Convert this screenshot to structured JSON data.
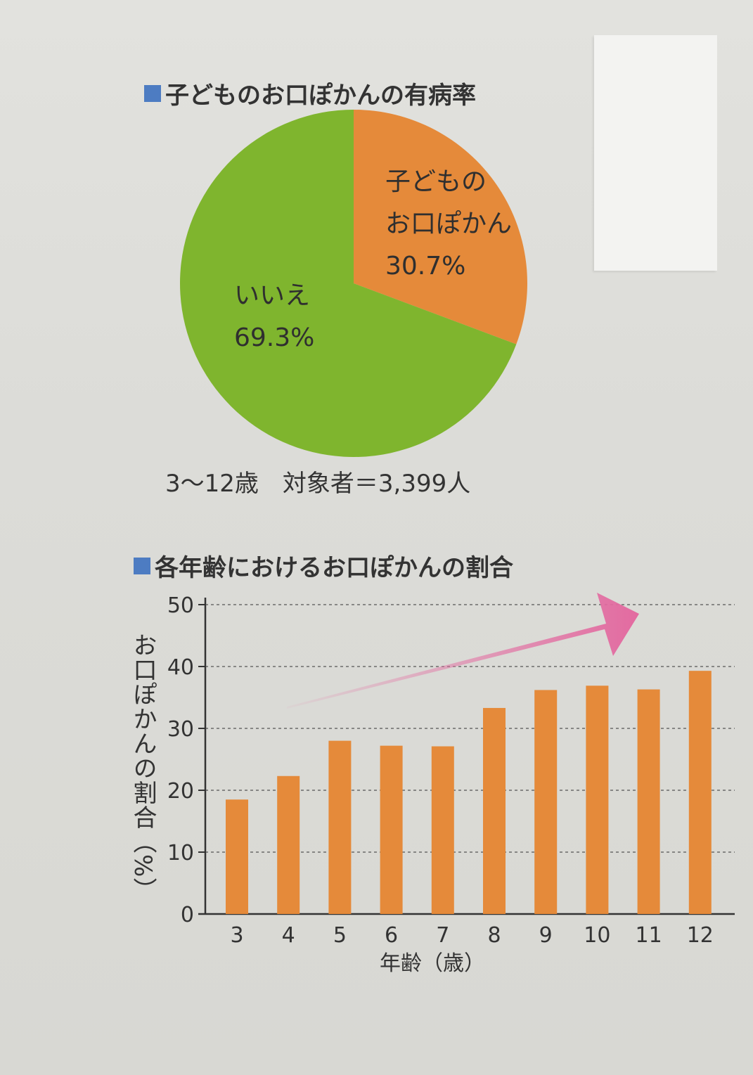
{
  "pie": {
    "title": "子どものお口ぽかんの有病率",
    "caption": "3〜12歳　対象者＝3,399人",
    "slices": [
      {
        "label_lines": [
          "子どもの",
          "お口ぽかん"
        ],
        "pct_text": "30.7%",
        "value": 30.7,
        "color": "#e58a3a"
      },
      {
        "label_lines": [
          "いいえ"
        ],
        "pct_text": "69.3%",
        "value": 69.3,
        "color": "#7fb52e"
      }
    ]
  },
  "bar": {
    "title": "各年齢におけるお口ぽかんの割合",
    "ylabel": "お口ぽかんの割合（%）",
    "xlabel": "年齢（歳）",
    "bar_color": "#e58a3a",
    "arrow_color": "#e36aa0"
  },
  "chart_data": [
    {
      "type": "pie",
      "title": "子どものお口ぽかんの有病率",
      "categories": [
        "子どものお口ぽかん",
        "いいえ"
      ],
      "values": [
        30.7,
        69.3
      ]
    },
    {
      "type": "bar",
      "title": "各年齢におけるお口ぽかんの割合",
      "xlabel": "年齢（歳）",
      "ylabel": "お口ぽかんの割合（%）",
      "categories": [
        "3",
        "4",
        "5",
        "6",
        "7",
        "8",
        "9",
        "10",
        "11",
        "12"
      ],
      "values": [
        18.5,
        22.3,
        28.0,
        27.2,
        27.1,
        33.3,
        36.2,
        36.9,
        36.3,
        39.3
      ],
      "ylim": [
        0,
        50
      ],
      "yticks": [
        0,
        10,
        20,
        30,
        40,
        50
      ],
      "grid": true
    }
  ]
}
